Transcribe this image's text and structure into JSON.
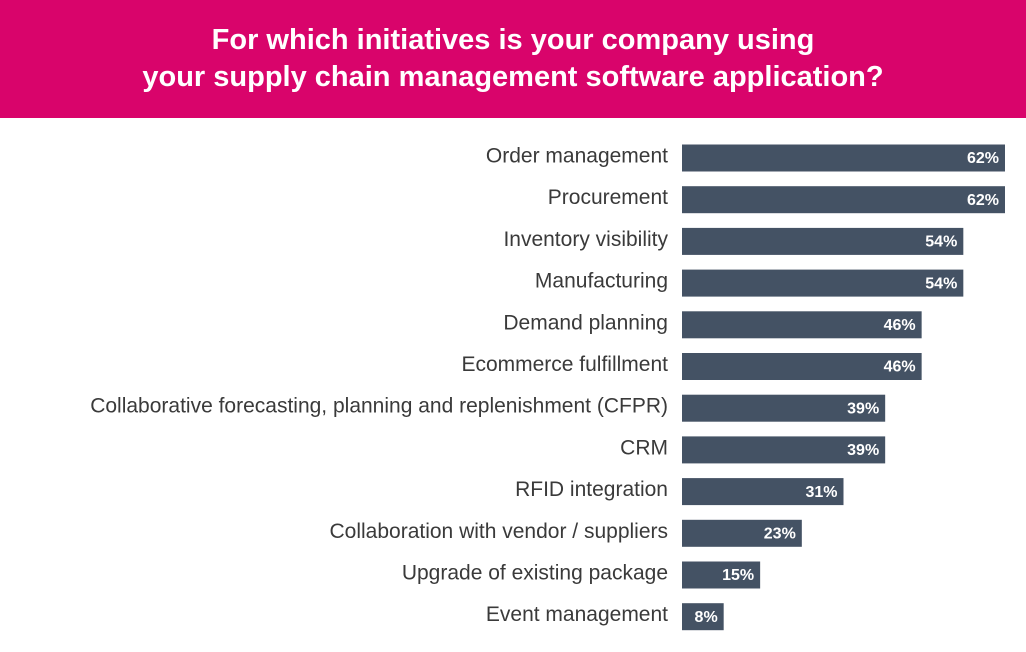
{
  "header": {
    "title_line1": "For which initiatives is your company using",
    "title_line2": "your supply chain management software application?"
  },
  "colors": {
    "header_bg": "#d9046b",
    "bar": "#445264",
    "label_text": "#3a3a3a",
    "value_text": "#ffffff"
  },
  "chart_data": {
    "type": "bar",
    "orientation": "horizontal",
    "title": "For which initiatives is your company using your supply chain management software application?",
    "categories": [
      "Order management",
      "Procurement",
      "Inventory visibility",
      "Manufacturing",
      "Demand planning",
      "Ecommerce fulfillment",
      "Collaborative forecasting, planning and replenishment (CFPR)",
      "CRM",
      "RFID integration",
      "Collaboration with vendor / suppliers",
      "Upgrade of existing package",
      "Event management"
    ],
    "values": [
      62,
      62,
      54,
      54,
      46,
      46,
      39,
      39,
      31,
      23,
      15,
      8
    ],
    "value_labels": [
      "62%",
      "62%",
      "54%",
      "54%",
      "46%",
      "46%",
      "39%",
      "39%",
      "31%",
      "23%",
      "15%",
      "8%"
    ],
    "xlabel": "",
    "ylabel": "",
    "xlim": [
      0,
      62
    ],
    "grid": false,
    "legend": "none"
  }
}
